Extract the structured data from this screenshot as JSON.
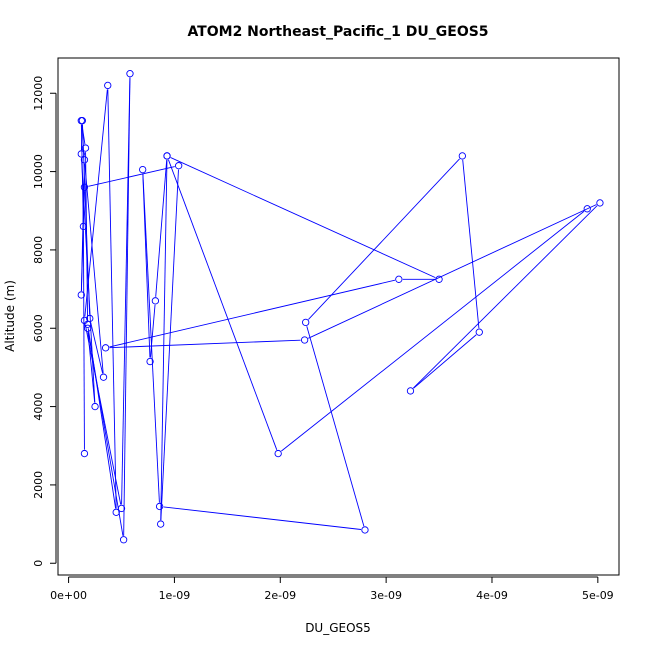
{
  "chart_data": {
    "type": "line",
    "title": "ATOM2 Northeast_Pacific_1 DU_GEOS5",
    "xlabel": "DU_GEOS5",
    "ylabel": "Altitude (m)",
    "xlim": [
      -1e-10,
      5.2e-09
    ],
    "ylim": [
      -300,
      12900
    ],
    "xticks": [
      0,
      1e-09,
      2e-09,
      3e-09,
      4e-09,
      5e-09
    ],
    "xtick_labels": [
      "0e+00",
      "1e-09",
      "2e-09",
      "3e-09",
      "4e-09",
      "5e-09"
    ],
    "yticks": [
      0,
      2000,
      4000,
      6000,
      8000,
      10000,
      12000
    ],
    "ytick_labels": [
      "0",
      "2000",
      "4000",
      "6000",
      "8000",
      "10000",
      "12000"
    ],
    "grid": false,
    "series_color": "#0000ff",
    "series": [
      {
        "points": [
          [
            1.5e-10,
            2800
          ],
          [
            1.4e-10,
            8600
          ],
          [
            1.2e-10,
            11300
          ],
          [
            1.6e-10,
            10600
          ],
          [
            1.8e-10,
            6100
          ],
          [
            4.5e-10,
            1300
          ],
          [
            3.7e-10,
            12200
          ],
          [
            1.5e-10,
            6200
          ],
          [
            5e-10,
            1400
          ],
          [
            5.8e-10,
            12500
          ],
          [
            5.2e-10,
            600
          ],
          [
            1.8e-10,
            6000
          ],
          [
            2.5e-10,
            4000
          ],
          [
            1.2e-10,
            10450
          ],
          [
            1.3e-10,
            11300
          ],
          [
            2e-10,
            6250
          ],
          [
            3.3e-10,
            4750
          ],
          [
            1.5e-10,
            10300
          ],
          [
            1.2e-10,
            6850
          ],
          [
            1.5e-10,
            9600
          ],
          [
            1.04e-09,
            10150
          ],
          [
            8.7e-10,
            1000
          ],
          [
            9.3e-10,
            10400
          ],
          [
            3.5e-09,
            7250
          ],
          [
            3.12e-09,
            7250
          ],
          [
            3.5e-10,
            5500
          ],
          [
            2.23e-09,
            5700
          ],
          [
            5.02e-09,
            9200
          ],
          [
            3.23e-09,
            4400
          ],
          [
            3.88e-09,
            5900
          ],
          [
            3.72e-09,
            10400
          ],
          [
            2.24e-09,
            6150
          ],
          [
            2.8e-09,
            850
          ],
          [
            8.6e-10,
            1450
          ],
          [
            7e-10,
            10050
          ],
          [
            7.7e-10,
            5150
          ],
          [
            8.2e-10,
            6700
          ],
          [
            9.3e-10,
            10400
          ],
          [
            1.98e-09,
            2800
          ],
          [
            4.9e-09,
            9050
          ]
        ]
      }
    ]
  }
}
